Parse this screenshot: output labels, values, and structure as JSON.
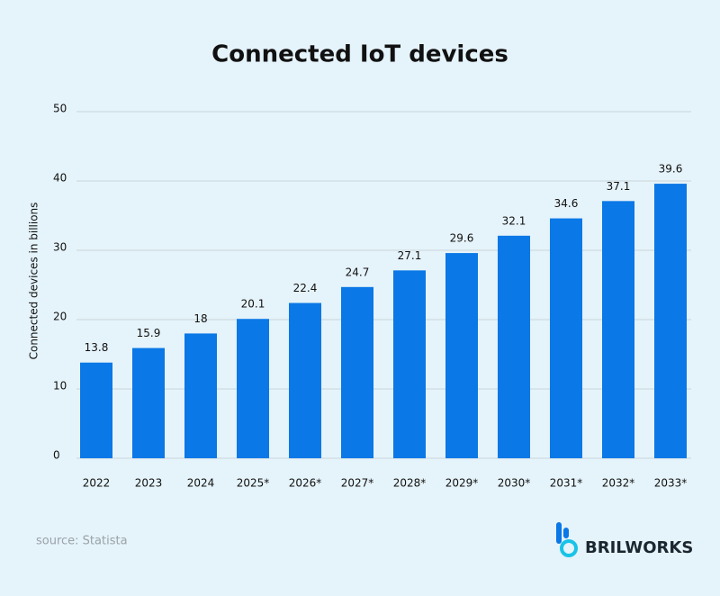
{
  "chart_data": {
    "type": "bar",
    "title": "Connected IoT devices",
    "y_label": "Connected devices in billions",
    "categories": [
      "2022",
      "2023",
      "2024",
      "2025*",
      "2026*",
      "2027*",
      "2028*",
      "2029*",
      "2030*",
      "2031*",
      "2032*",
      "2033*"
    ],
    "values": [
      13.8,
      15.9,
      18,
      20.1,
      22.4,
      24.7,
      27.1,
      29.6,
      32.1,
      34.6,
      37.1,
      39.6
    ],
    "color": "#0a78e6",
    "ylim": [
      0,
      50
    ],
    "yticks": [
      0,
      10,
      20,
      30,
      40,
      50
    ],
    "grid": true,
    "source": "source: Statista"
  },
  "logo": "BRILWORKS"
}
